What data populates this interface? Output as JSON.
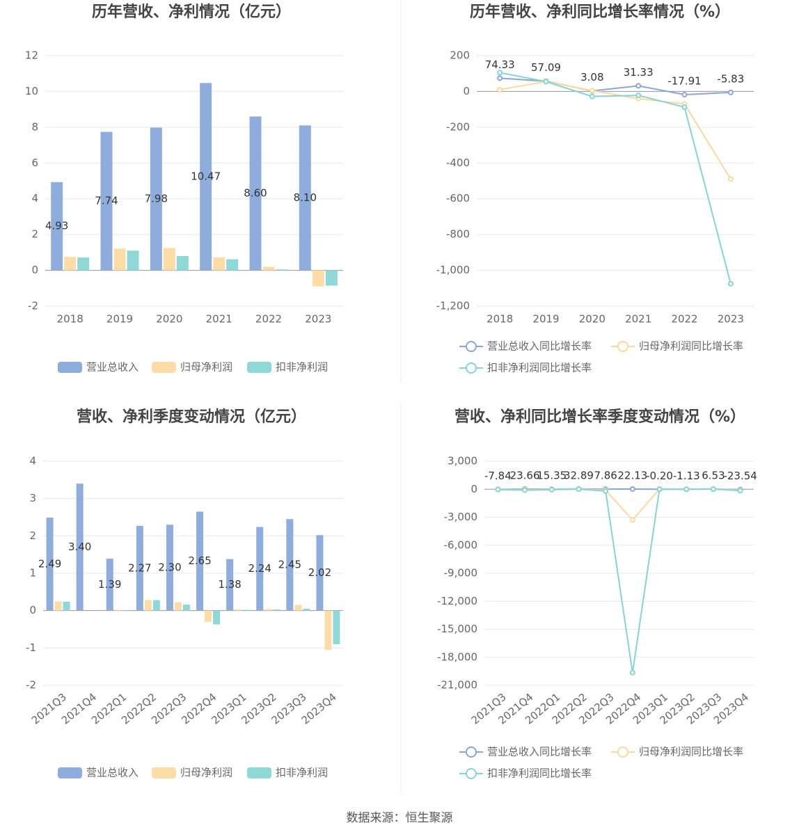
{
  "chart_data": [
    {
      "type": "bar",
      "title": "历年营收、净利情况（亿元）",
      "categories": [
        "2018",
        "2019",
        "2020",
        "2021",
        "2022",
        "2023"
      ],
      "series": [
        {
          "name": "营业总收入",
          "color": "#8eacdc",
          "values": [
            4.93,
            7.74,
            7.98,
            10.47,
            8.6,
            8.1
          ],
          "value_labels": [
            "4.93",
            "7.74",
            "7.98",
            "10.47",
            "8.60",
            "8.10"
          ]
        },
        {
          "name": "归母净利润",
          "color": "#fddca5",
          "values": [
            0.75,
            1.22,
            1.25,
            0.72,
            0.2,
            -0.9
          ]
        },
        {
          "name": "扣非净利润",
          "color": "#8ed8d8",
          "values": [
            0.72,
            1.1,
            0.8,
            0.62,
            0.05,
            -0.85
          ]
        }
      ],
      "ylim": [
        -2,
        12
      ],
      "yticks": [
        -2,
        0,
        2,
        4,
        6,
        8,
        10,
        12
      ],
      "grid": true,
      "legend": "bottom"
    },
    {
      "type": "line",
      "title": "历年营收、净利同比增长率情况（%）",
      "categories": [
        "2018",
        "2019",
        "2020",
        "2021",
        "2022",
        "2023"
      ],
      "series": [
        {
          "name": "营业总收入同比增长率",
          "color": "#8aa6d8",
          "values": [
            74.33,
            57.09,
            3.08,
            31.33,
            -17.91,
            -5.83
          ],
          "value_labels": [
            "74.33",
            "57.09",
            "3.08",
            "31.33",
            "-17.91",
            "-5.83"
          ]
        },
        {
          "name": "归母净利润同比增长率",
          "color": "#fbd99b",
          "values": [
            10,
            55,
            5,
            -40,
            -70,
            -490
          ]
        },
        {
          "name": "扣非净利润同比增长率",
          "color": "#85d4d4",
          "values": [
            105,
            55,
            -28,
            -22,
            -88,
            -1075
          ]
        }
      ],
      "ylim": [
        -1200,
        200
      ],
      "yticks": [
        {
          "value": -1200,
          "label": "-1,200"
        },
        {
          "value": -1000,
          "label": "-1,000"
        },
        -800,
        -600,
        -400,
        -200,
        0,
        200
      ],
      "grid": true,
      "legend": "bottom"
    },
    {
      "type": "bar",
      "title": "营收、净利季度变动情况（亿元）",
      "categories": [
        "2021Q3",
        "2021Q4",
        "2022Q1",
        "2022Q2",
        "2022Q3",
        "2022Q4",
        "2023Q1",
        "2023Q2",
        "2023Q3",
        "2023Q4"
      ],
      "series": [
        {
          "name": "营业总收入",
          "color": "#8eacdc",
          "values": [
            2.49,
            3.4,
            1.39,
            2.27,
            2.3,
            2.65,
            1.38,
            2.24,
            2.45,
            2.02
          ],
          "value_labels": [
            "2.49",
            "3.40",
            "1.39",
            "2.27",
            "2.30",
            "2.65",
            "1.38",
            "2.24",
            "2.45",
            "2.02"
          ]
        },
        {
          "name": "归母净利润",
          "color": "#fddca5",
          "values": [
            0.25,
            0.0,
            0.02,
            0.28,
            0.22,
            -0.3,
            0.03,
            0.04,
            0.15,
            -1.05
          ]
        },
        {
          "name": "扣非净利润",
          "color": "#8ed8d8",
          "values": [
            0.24,
            0.0,
            0.01,
            0.28,
            0.16,
            -0.37,
            0.02,
            0.03,
            0.05,
            -0.9
          ]
        }
      ],
      "ylim": [
        -2,
        4
      ],
      "yticks": [
        -2,
        -1,
        0,
        1,
        2,
        3,
        4
      ],
      "grid": true,
      "legend": "bottom"
    },
    {
      "type": "line",
      "title": "营收、净利同比增长率季度变动情况（%）",
      "categories": [
        "2021Q3",
        "2021Q4",
        "2022Q1",
        "2022Q2",
        "2022Q3",
        "2022Q4",
        "2023Q1",
        "2023Q2",
        "2023Q3",
        "2023Q4"
      ],
      "series": [
        {
          "name": "营业总收入同比增长率",
          "color": "#8aa6d8",
          "values": [
            -7.84,
            23.66,
            15.35,
            32.89,
            7.86,
            22.13,
            -0.2,
            -1.13,
            6.53,
            -23.54
          ],
          "value_labels": [
            "-7.84",
            "23.66",
            "15.35",
            "32.89",
            "7.86",
            "22.13",
            "-0.20",
            "-1.13",
            "6.53",
            "-23.54"
          ]
        },
        {
          "name": "归母净利润同比增长率",
          "color": "#fbd99b",
          "values": [
            -20,
            -50,
            -10,
            20,
            -100,
            -3300,
            20,
            10,
            30,
            -100
          ]
        },
        {
          "name": "扣非净利润同比增长率",
          "color": "#85d4d4",
          "values": [
            -30,
            -100,
            -50,
            10,
            -200,
            -19650,
            10,
            0,
            20,
            -150
          ]
        }
      ],
      "ylim": [
        -21000,
        3000
      ],
      "yticks": [
        {
          "value": -21000,
          "label": "-21,000"
        },
        {
          "value": -18000,
          "label": "-18,000"
        },
        {
          "value": -15000,
          "label": "-15,000"
        },
        {
          "value": -12000,
          "label": "-12,000"
        },
        {
          "value": -9000,
          "label": "-9,000"
        },
        {
          "value": -6000,
          "label": "-6,000"
        },
        {
          "value": -3000,
          "label": "-3,000"
        },
        0,
        {
          "value": 3000,
          "label": "3,000"
        }
      ],
      "grid": true,
      "legend": "bottom"
    }
  ],
  "source": "数据来源：恒生聚源"
}
